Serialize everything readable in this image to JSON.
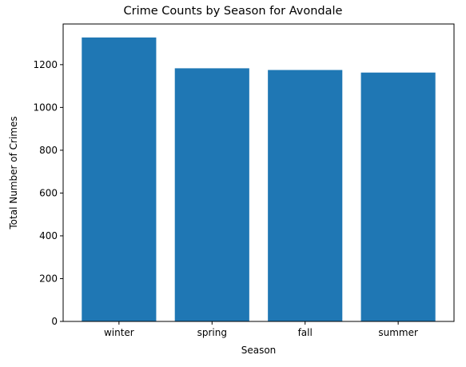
{
  "chart_data": {
    "type": "bar",
    "title": "Crime Counts by Season for Avondale",
    "xlabel": "Season",
    "ylabel": "Total Number of Crimes",
    "categories": [
      "winter",
      "spring",
      "fall",
      "summer"
    ],
    "values": [
      1327,
      1183,
      1175,
      1163
    ],
    "ylim": [
      0,
      1390
    ],
    "yticks": [
      0,
      200,
      400,
      600,
      800,
      1000,
      1200
    ],
    "grid": false,
    "legend": "none",
    "bar_color": "#1f77b4"
  }
}
